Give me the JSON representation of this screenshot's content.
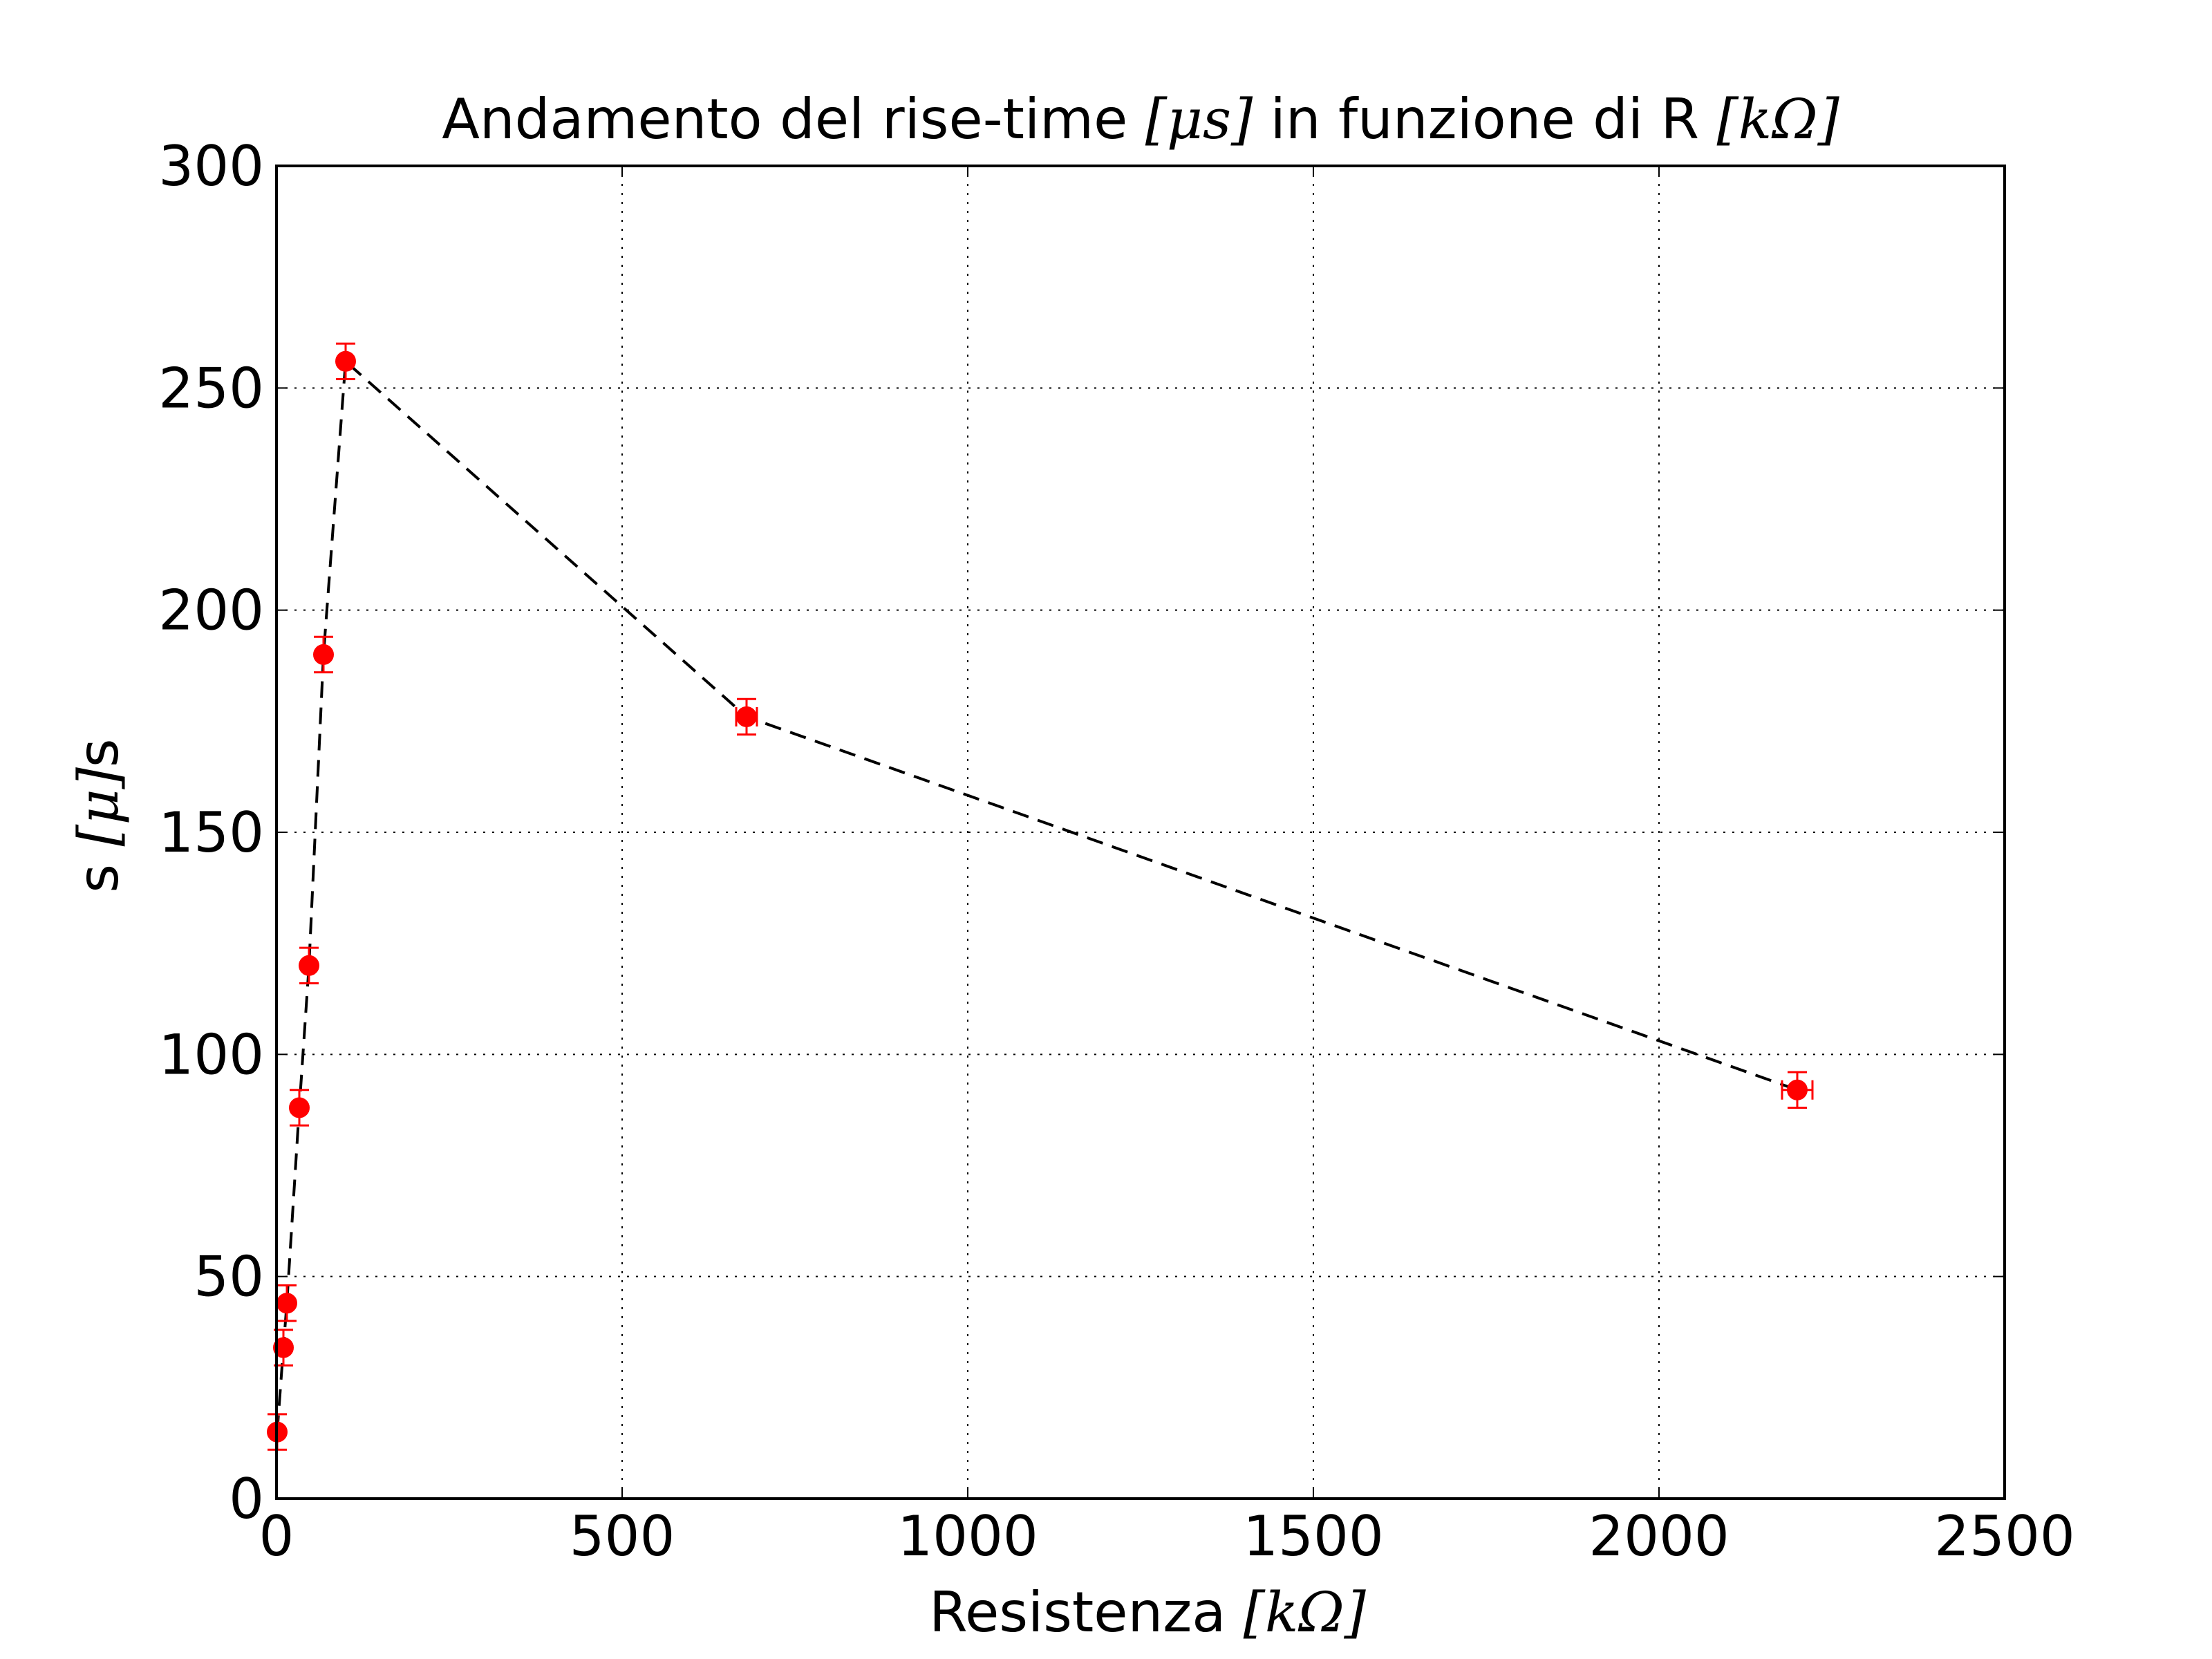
{
  "chart_data": {
    "type": "scatter",
    "title": {
      "prefix": "Andamento del rise-time ",
      "unit1": "[μs]",
      "middle": " in funzione di R ",
      "unit2": "[kΩ]"
    },
    "xlabel": {
      "text": "Resistenza ",
      "unit": "[kΩ]"
    },
    "ylabel": {
      "prefix": "s ",
      "unit": "[μ]",
      "suffix": "s"
    },
    "xlim": [
      0,
      2500
    ],
    "ylim": [
      0,
      300
    ],
    "xticks": [
      0,
      500,
      1000,
      1500,
      2000,
      2500
    ],
    "yticks": [
      0,
      50,
      100,
      150,
      200,
      250,
      300
    ],
    "grid": true,
    "line_style": "dashed",
    "colors": {
      "points": "#ff0000",
      "line": "#000000",
      "grid": "#000000"
    },
    "series": [
      {
        "points": [
          {
            "x": 1,
            "y": 15,
            "xerr": 0,
            "yerr": 4
          },
          {
            "x": 10,
            "y": 34,
            "xerr": 0,
            "yerr": 4
          },
          {
            "x": 15,
            "y": 44,
            "xerr": 0,
            "yerr": 4
          },
          {
            "x": 33,
            "y": 88,
            "xerr": 0,
            "yerr": 4
          },
          {
            "x": 47,
            "y": 120,
            "xerr": 0,
            "yerr": 4
          },
          {
            "x": 68,
            "y": 190,
            "xerr": 0,
            "yerr": 4
          },
          {
            "x": 100,
            "y": 256,
            "xerr": 0,
            "yerr": 4
          },
          {
            "x": 680,
            "y": 176,
            "xerr": 15,
            "yerr": 4
          },
          {
            "x": 2200,
            "y": 92,
            "xerr": 22,
            "yerr": 4
          }
        ]
      }
    ]
  }
}
